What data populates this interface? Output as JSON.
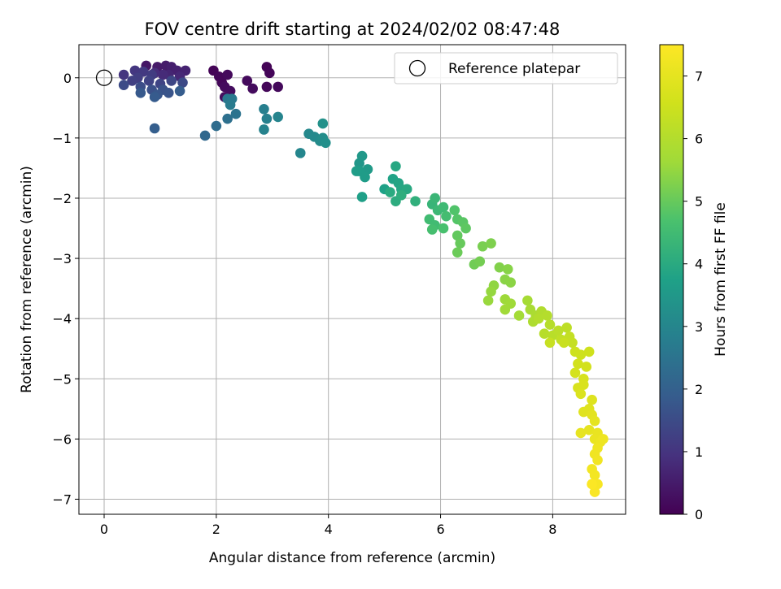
{
  "chart_data": {
    "type": "scatter",
    "title": "FOV centre drift starting at 2024/02/02 08:47:48",
    "xlabel": "Angular distance from reference (arcmin)",
    "ylabel": "Rotation from reference (arcmin)",
    "xlim": [
      -0.45,
      9.3
    ],
    "ylim": [
      -7.25,
      0.55
    ],
    "xticks": [
      0,
      2,
      4,
      6,
      8
    ],
    "yticks": [
      0,
      -1,
      -2,
      -3,
      -4,
      -5,
      -6,
      -7
    ],
    "xtick_labels": [
      "0",
      "2",
      "4",
      "6",
      "8"
    ],
    "ytick_labels": [
      "0",
      "−1",
      "−2",
      "−3",
      "−4",
      "−5",
      "−6",
      "−7"
    ],
    "grid": true,
    "legend": {
      "position": "top-right",
      "entries": [
        "Reference platepar"
      ]
    },
    "reference_point": {
      "x": 0,
      "y": 0
    },
    "colorbar": {
      "label": "Hours from first FF file",
      "range": [
        0,
        7.5
      ],
      "ticks": [
        0,
        1,
        2,
        3,
        4,
        5,
        6,
        7
      ],
      "tick_labels": [
        "0",
        "1",
        "2",
        "3",
        "4",
        "5",
        "6",
        "7"
      ],
      "colormap": "viridis"
    },
    "points": [
      [
        1.95,
        0.12,
        0.05
      ],
      [
        2.05,
        0.02,
        0.1
      ],
      [
        2.1,
        -0.08,
        0.12
      ],
      [
        2.2,
        0.05,
        0.15
      ],
      [
        2.15,
        -0.15,
        0.2
      ],
      [
        2.25,
        -0.22,
        0.22
      ],
      [
        2.15,
        -0.32,
        0.25
      ],
      [
        2.9,
        0.18,
        0.05
      ],
      [
        2.95,
        0.08,
        0.08
      ],
      [
        2.9,
        -0.15,
        0.12
      ],
      [
        3.1,
        -0.15,
        0.15
      ],
      [
        2.55,
        -0.05,
        0.18
      ],
      [
        2.65,
        -0.18,
        0.2
      ],
      [
        0.75,
        0.2,
        0.4
      ],
      [
        0.95,
        0.18,
        0.45
      ],
      [
        1.1,
        0.2,
        0.5
      ],
      [
        1.2,
        0.18,
        0.55
      ],
      [
        1.3,
        0.12,
        0.6
      ],
      [
        1.45,
        0.12,
        0.65
      ],
      [
        1.15,
        0.05,
        0.7
      ],
      [
        1.35,
        0.02,
        0.75
      ],
      [
        1.05,
        0.05,
        0.8
      ],
      [
        0.9,
        0.08,
        0.85
      ],
      [
        0.35,
        0.05,
        1.0
      ],
      [
        0.55,
        0.12,
        1.05
      ],
      [
        0.7,
        0.1,
        1.1
      ],
      [
        0.85,
        0.05,
        1.15
      ],
      [
        0.6,
        0.0,
        1.2
      ],
      [
        0.5,
        -0.05,
        1.25
      ],
      [
        0.8,
        -0.05,
        1.3
      ],
      [
        1.0,
        -0.1,
        1.35
      ],
      [
        1.2,
        -0.05,
        1.4
      ],
      [
        1.4,
        -0.08,
        1.45
      ],
      [
        0.35,
        -0.12,
        1.5
      ],
      [
        0.65,
        -0.15,
        1.55
      ],
      [
        0.85,
        -0.2,
        1.6
      ],
      [
        1.05,
        -0.2,
        1.65
      ],
      [
        1.15,
        -0.25,
        1.7
      ],
      [
        0.95,
        -0.28,
        1.75
      ],
      [
        0.65,
        -0.25,
        1.8
      ],
      [
        0.9,
        -0.32,
        1.85
      ],
      [
        1.35,
        -0.22,
        1.9
      ],
      [
        0.9,
        -0.84,
        1.95
      ],
      [
        1.8,
        -0.96,
        2.2
      ],
      [
        2.0,
        -0.8,
        2.3
      ],
      [
        2.2,
        -0.68,
        2.4
      ],
      [
        2.35,
        -0.6,
        2.5
      ],
      [
        2.2,
        -0.35,
        2.6
      ],
      [
        2.28,
        -0.35,
        2.65
      ],
      [
        2.25,
        -0.45,
        2.7
      ],
      [
        2.85,
        -0.52,
        2.8
      ],
      [
        2.9,
        -0.68,
        2.85
      ],
      [
        2.85,
        -0.86,
        2.9
      ],
      [
        3.1,
        -0.65,
        2.95
      ],
      [
        3.5,
        -1.25,
        3.0
      ],
      [
        3.65,
        -0.93,
        3.05
      ],
      [
        3.75,
        -0.98,
        3.1
      ],
      [
        3.85,
        -1.05,
        3.15
      ],
      [
        3.9,
        -1.0,
        3.2
      ],
      [
        3.95,
        -1.08,
        3.25
      ],
      [
        3.9,
        -0.76,
        3.3
      ],
      [
        4.55,
        -1.42,
        3.45
      ],
      [
        4.6,
        -1.3,
        3.5
      ],
      [
        4.7,
        -1.52,
        3.55
      ],
      [
        4.55,
        -1.55,
        3.6
      ],
      [
        4.65,
        -1.65,
        3.62
      ],
      [
        4.5,
        -1.55,
        3.65
      ],
      [
        4.6,
        -1.98,
        3.7
      ],
      [
        5.0,
        -1.85,
        3.75
      ],
      [
        5.15,
        -1.68,
        3.8
      ],
      [
        5.25,
        -1.75,
        3.85
      ],
      [
        5.3,
        -1.85,
        3.9
      ],
      [
        5.2,
        -1.47,
        3.92
      ],
      [
        5.4,
        -1.85,
        3.95
      ],
      [
        5.1,
        -1.9,
        4.0
      ],
      [
        5.2,
        -2.05,
        4.05
      ],
      [
        5.3,
        -1.95,
        4.1
      ],
      [
        5.55,
        -2.05,
        4.15
      ],
      [
        5.85,
        -2.1,
        4.3
      ],
      [
        5.9,
        -2.0,
        4.35
      ],
      [
        5.95,
        -2.2,
        4.4
      ],
      [
        6.05,
        -2.15,
        4.45
      ],
      [
        5.8,
        -2.35,
        4.5
      ],
      [
        5.9,
        -2.45,
        4.52
      ],
      [
        6.1,
        -2.3,
        4.55
      ],
      [
        5.85,
        -2.52,
        4.6
      ],
      [
        6.05,
        -2.5,
        4.65
      ],
      [
        6.25,
        -2.2,
        4.75
      ],
      [
        6.3,
        -2.35,
        4.8
      ],
      [
        6.4,
        -2.4,
        4.85
      ],
      [
        6.45,
        -2.5,
        4.9
      ],
      [
        6.3,
        -2.62,
        4.95
      ],
      [
        6.35,
        -2.75,
        5.0
      ],
      [
        6.3,
        -2.9,
        5.05
      ],
      [
        6.6,
        -3.1,
        5.1
      ],
      [
        6.7,
        -3.05,
        5.15
      ],
      [
        6.75,
        -2.8,
        5.2
      ],
      [
        6.9,
        -2.75,
        5.25
      ],
      [
        7.05,
        -3.15,
        5.3
      ],
      [
        7.2,
        -3.18,
        5.35
      ],
      [
        7.15,
        -3.35,
        5.38
      ],
      [
        7.25,
        -3.4,
        5.4
      ],
      [
        6.95,
        -3.45,
        5.45
      ],
      [
        6.9,
        -3.55,
        5.5
      ],
      [
        6.85,
        -3.7,
        5.55
      ],
      [
        7.15,
        -3.68,
        5.6
      ],
      [
        7.25,
        -3.75,
        5.62
      ],
      [
        7.15,
        -3.85,
        5.65
      ],
      [
        7.4,
        -3.95,
        5.7
      ],
      [
        7.55,
        -3.7,
        5.75
      ],
      [
        7.6,
        -3.85,
        5.8
      ],
      [
        7.7,
        -3.95,
        5.85
      ],
      [
        7.65,
        -4.05,
        5.9
      ],
      [
        7.8,
        -3.88,
        5.95
      ],
      [
        7.75,
        -4.0,
        6.0
      ],
      [
        7.9,
        -3.95,
        6.02
      ],
      [
        7.95,
        -4.1,
        6.05
      ],
      [
        7.85,
        -4.25,
        6.08
      ],
      [
        8.0,
        -4.28,
        6.1
      ],
      [
        8.1,
        -4.2,
        6.15
      ],
      [
        8.25,
        -4.15,
        6.2
      ],
      [
        8.15,
        -4.35,
        6.25
      ],
      [
        8.3,
        -4.3,
        6.3
      ],
      [
        8.35,
        -4.4,
        6.35
      ],
      [
        7.95,
        -4.4,
        6.38
      ],
      [
        8.2,
        -4.4,
        6.42
      ],
      [
        8.4,
        -4.55,
        6.5
      ],
      [
        8.5,
        -4.6,
        6.52
      ],
      [
        8.65,
        -4.55,
        6.55
      ],
      [
        8.45,
        -4.75,
        6.6
      ],
      [
        8.6,
        -4.8,
        6.62
      ],
      [
        8.4,
        -4.9,
        6.65
      ],
      [
        8.55,
        -5.0,
        6.7
      ],
      [
        8.45,
        -5.15,
        6.72
      ],
      [
        8.55,
        -5.1,
        6.75
      ],
      [
        8.5,
        -5.25,
        6.8
      ],
      [
        8.7,
        -5.35,
        6.85
      ],
      [
        8.65,
        -5.5,
        6.88
      ],
      [
        8.55,
        -5.55,
        6.9
      ],
      [
        8.7,
        -5.6,
        6.95
      ],
      [
        8.75,
        -5.7,
        7.0
      ],
      [
        8.65,
        -5.85,
        7.02
      ],
      [
        8.5,
        -5.9,
        7.05
      ],
      [
        8.8,
        -5.9,
        7.08
      ],
      [
        8.75,
        -6.0,
        7.1
      ],
      [
        8.85,
        -6.05,
        7.15
      ],
      [
        8.9,
        -6.0,
        7.18
      ],
      [
        8.8,
        -6.15,
        7.2
      ],
      [
        8.75,
        -6.25,
        7.22
      ],
      [
        8.8,
        -6.35,
        7.25
      ],
      [
        8.7,
        -6.5,
        7.28
      ],
      [
        8.75,
        -6.6,
        7.3
      ],
      [
        8.7,
        -6.75,
        7.35
      ],
      [
        8.8,
        -6.75,
        7.38
      ],
      [
        8.75,
        -6.88,
        7.42
      ],
      [
        8.7,
        -6.75,
        7.45
      ]
    ]
  }
}
